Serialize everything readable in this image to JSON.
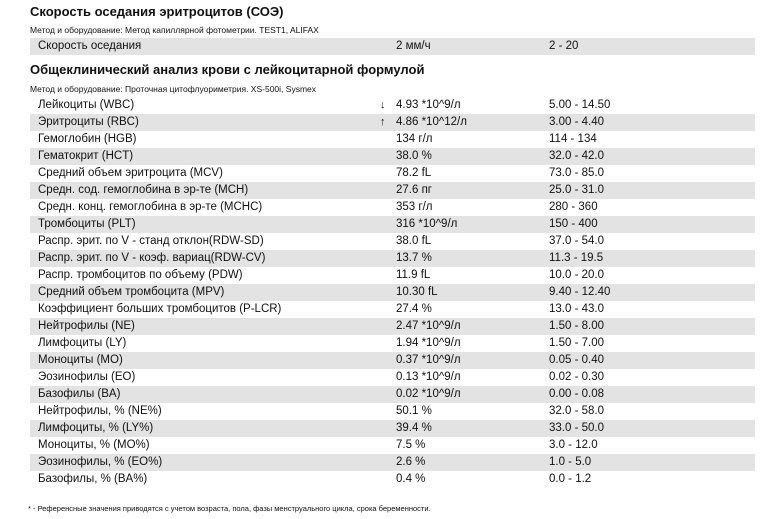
{
  "esr_section": {
    "title": "Скорость оседания эритроцитов (СОЭ)",
    "method": "Метод и оборудование:  Метод капиллярной фотометрии. TEST1, ALIFAX",
    "rows": [
      {
        "name": "Скорость оседания",
        "flag": "",
        "value": "2 мм/ч",
        "ref": "2 - 20"
      }
    ]
  },
  "cbc_section": {
    "title": "Общеклинический анализ крови с лейкоцитарной формулой",
    "method": "Метод и оборудование:  Проточная цитофлуориметрия. XS-500i, Sysmex",
    "rows": [
      {
        "name": "Лейкоциты (WBC)",
        "flag": "↓",
        "value": "4.93 *10^9/л",
        "ref": "5.00 - 14.50"
      },
      {
        "name": "Эритроциты (RBC)",
        "flag": "↑",
        "value": "4.86 *10^12/л",
        "ref": "3.00 - 4.40"
      },
      {
        "name": "Гемоглобин (HGB)",
        "flag": "",
        "value": "134 г/л",
        "ref": "114 - 134"
      },
      {
        "name": "Гематокрит (HCT)",
        "flag": "",
        "value": "38.0 %",
        "ref": "32.0 - 42.0"
      },
      {
        "name": "Средний объем эритроцита (MCV)",
        "flag": "",
        "value": "78.2 fL",
        "ref": "73.0 - 85.0"
      },
      {
        "name": "Средн. сод. гемоглобина в эр-те (MCH)",
        "flag": "",
        "value": "27.6 пг",
        "ref": "25.0 - 31.0"
      },
      {
        "name": "Средн. конц. гемоглобина в эр-те (MCHC)",
        "flag": "",
        "value": "353 г/л",
        "ref": "280 - 360"
      },
      {
        "name": "Тромбоциты (PLT)",
        "flag": "",
        "value": "316 *10^9/л",
        "ref": "150 - 400"
      },
      {
        "name": "Распр. эрит. по V - станд отклон(RDW-SD)",
        "flag": "",
        "value": "38.0 fL",
        "ref": "37.0 - 54.0"
      },
      {
        "name": "Распр. эрит. по V - коэф. вариац(RDW-CV)",
        "flag": "",
        "value": "13.7 %",
        "ref": "11.3 - 19.5"
      },
      {
        "name": "Распр. тромбоцитов по объему (PDW)",
        "flag": "",
        "value": "11.9 fL",
        "ref": "10.0 - 20.0"
      },
      {
        "name": "Средний объем тромбоцита (MPV)",
        "flag": "",
        "value": "10.30 fL",
        "ref": "9.40 - 12.40"
      },
      {
        "name": "Коэффициент больших тромбоцитов (P-LCR)",
        "flag": "",
        "value": "27.4 %",
        "ref": "13.0 - 43.0"
      },
      {
        "name": "Нейтрофилы (NE)",
        "flag": "",
        "value": "2.47 *10^9/л",
        "ref": "1.50 - 8.00"
      },
      {
        "name": "Лимфоциты (LY)",
        "flag": "",
        "value": "1.94 *10^9/л",
        "ref": "1.50 - 7.00"
      },
      {
        "name": "Моноциты (MO)",
        "flag": "",
        "value": "0.37 *10^9/л",
        "ref": "0.05 - 0.40"
      },
      {
        "name": "Эозинофилы (EO)",
        "flag": "",
        "value": "0.13 *10^9/л",
        "ref": "0.02 - 0.30"
      },
      {
        "name": "Базофилы (BA)",
        "flag": "",
        "value": "0.02 *10^9/л",
        "ref": "0.00 - 0.08"
      },
      {
        "name": "Нейтрофилы, % (NE%)",
        "flag": "",
        "value": "50.1 %",
        "ref": "32.0 - 58.0"
      },
      {
        "name": "Лимфоциты, % (LY%)",
        "flag": "",
        "value": "39.4 %",
        "ref": "33.0 - 50.0"
      },
      {
        "name": "Моноциты, % (MO%)",
        "flag": "",
        "value": "7.5 %",
        "ref": "3.0 - 12.0"
      },
      {
        "name": "Эозинофилы, % (EO%)",
        "flag": "",
        "value": "2.6 %",
        "ref": "1.0 - 5.0"
      },
      {
        "name": "Базофилы, % (BA%)",
        "flag": "",
        "value": "0.4 %",
        "ref": "0.0 - 1.2"
      }
    ]
  },
  "footnote": "* - Референсные значения приводятся с учетом возраста, пола, фазы менструального цикла, срока беременности."
}
